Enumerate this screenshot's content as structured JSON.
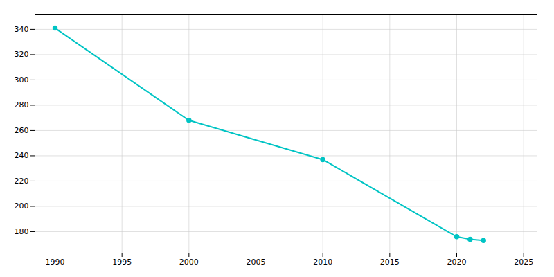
{
  "chart_data": {
    "type": "line",
    "x": [
      1990,
      2000,
      2010,
      2020,
      2021,
      2022
    ],
    "values": [
      341,
      268,
      237,
      176,
      174,
      173
    ],
    "color": "#00C4C4",
    "marker": "circle",
    "line_style": "solid",
    "xlim": [
      1988.5,
      2026
    ],
    "ylim": [
      163,
      352
    ],
    "xticks": [
      1990,
      1995,
      2000,
      2005,
      2010,
      2015,
      2020,
      2025
    ],
    "yticks": [
      180,
      200,
      220,
      240,
      260,
      280,
      300,
      320,
      340
    ],
    "grid": true
  }
}
